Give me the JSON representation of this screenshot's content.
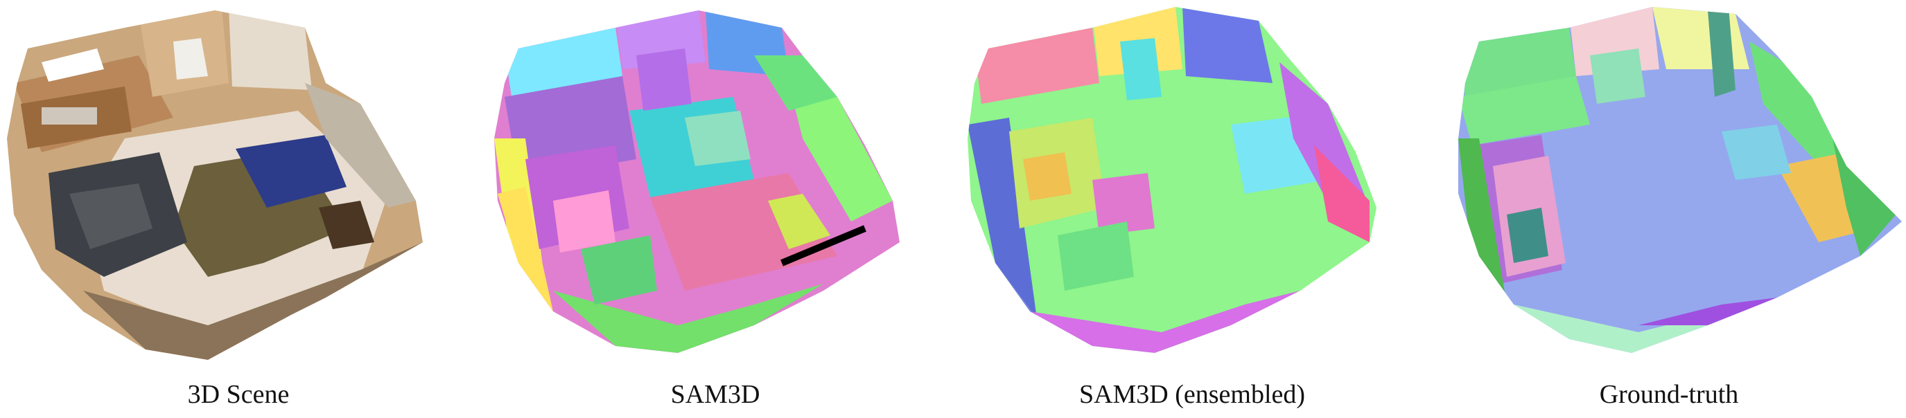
{
  "panels": [
    {
      "caption": "3D Scene",
      "image": "photorealistic 3D scan render of a room"
    },
    {
      "caption": "SAM3D",
      "image": "colored 3D segmentation of room"
    },
    {
      "caption": "SAM3D (ensembled)",
      "image": "colored 3D segmentation of room"
    },
    {
      "caption": "Ground-truth",
      "image": "colored 3D ground-truth segmentation of room"
    }
  ]
}
